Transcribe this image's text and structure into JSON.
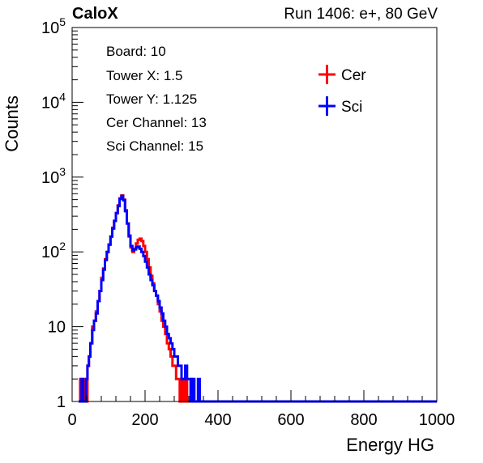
{
  "header": {
    "left_title": "CaloX",
    "right_title": "Run 1406: e+, 80 GeV"
  },
  "info_box": {
    "lines": [
      "Board: 10",
      "Tower X: 1.5",
      "Tower Y: 1.125",
      "Cer Channel: 13",
      "Sci Channel: 15"
    ]
  },
  "chart_data": {
    "type": "line",
    "xlabel": "Energy HG",
    "ylabel": "Counts",
    "xlim": [
      0,
      1000
    ],
    "ylim": [
      1,
      100000
    ],
    "yscale": "log",
    "xticks": [
      0,
      200,
      400,
      600,
      800,
      1000
    ],
    "yticks": [
      {
        "value": 1,
        "label": "1"
      },
      {
        "value": 10,
        "label": "10"
      },
      {
        "value": 100,
        "label": "10^2"
      },
      {
        "value": 1000,
        "label": "10^3"
      },
      {
        "value": 10000,
        "label": "10^4"
      },
      {
        "value": 100000,
        "label": "10^5"
      }
    ],
    "legend": {
      "position": "top-right",
      "entries": [
        {
          "name": "Cer",
          "color": "#ff0000"
        },
        {
          "name": "Sci",
          "color": "#0000ff"
        }
      ]
    },
    "series": [
      {
        "name": "Cer",
        "color": "#ff0000",
        "x": [
          18,
          22,
          26,
          30,
          34,
          38,
          42,
          46,
          50,
          55,
          60,
          65,
          70,
          75,
          80,
          85,
          90,
          95,
          100,
          105,
          110,
          115,
          120,
          125,
          130,
          135,
          140,
          145,
          150,
          155,
          160,
          165,
          170,
          175,
          180,
          185,
          190,
          195,
          200,
          205,
          210,
          215,
          220,
          225,
          230,
          235,
          240,
          245,
          250,
          255,
          260,
          265,
          270,
          275,
          280,
          285,
          290,
          295,
          300,
          305,
          310,
          315,
          320,
          325,
          330,
          335,
          340,
          345,
          350,
          360,
          380
        ],
        "y": [
          1,
          2,
          1,
          2,
          1,
          1,
          3,
          4,
          6,
          10,
          12,
          16,
          22,
          30,
          45,
          60,
          80,
          100,
          125,
          160,
          210,
          260,
          330,
          420,
          520,
          570,
          500,
          360,
          240,
          160,
          115,
          100,
          110,
          130,
          145,
          150,
          140,
          120,
          100,
          80,
          62,
          48,
          38,
          30,
          26,
          20,
          16,
          12,
          10,
          8,
          6,
          5,
          4,
          3,
          3,
          2,
          2,
          1,
          2,
          1,
          2,
          1,
          1,
          2,
          1,
          1,
          1,
          1,
          1,
          1,
          1
        ]
      },
      {
        "name": "Sci",
        "color": "#0000ff",
        "x": [
          18,
          22,
          26,
          30,
          34,
          38,
          42,
          46,
          50,
          55,
          60,
          65,
          70,
          75,
          80,
          85,
          90,
          95,
          100,
          105,
          110,
          115,
          120,
          125,
          130,
          135,
          140,
          145,
          150,
          155,
          160,
          165,
          170,
          175,
          180,
          185,
          190,
          195,
          200,
          205,
          210,
          215,
          220,
          225,
          230,
          235,
          240,
          245,
          250,
          255,
          260,
          265,
          270,
          275,
          280,
          285,
          290,
          295,
          300,
          305,
          310,
          315,
          320,
          325,
          330,
          335,
          340,
          345,
          350,
          360,
          370,
          380,
          390,
          400,
          410,
          420,
          430,
          440,
          450,
          460,
          470,
          480,
          490,
          500,
          520,
          540,
          560,
          580,
          600,
          620,
          640,
          660,
          680,
          700,
          720,
          740,
          760,
          780,
          800,
          820,
          840,
          860,
          880,
          900,
          920,
          940,
          960,
          980,
          1000
        ],
        "y": [
          1,
          1,
          2,
          1,
          1,
          2,
          3,
          4,
          6,
          9,
          12,
          15,
          22,
          30,
          42,
          58,
          78,
          100,
          125,
          160,
          205,
          260,
          330,
          410,
          510,
          560,
          490,
          350,
          240,
          165,
          120,
          105,
          108,
          115,
          118,
          110,
          100,
          88,
          74,
          62,
          50,
          42,
          36,
          30,
          26,
          22,
          18,
          15,
          12,
          10,
          8,
          7,
          6,
          5,
          4,
          4,
          3,
          3,
          2,
          2,
          3,
          2,
          2,
          1,
          2,
          1,
          1,
          2,
          1,
          1,
          1,
          1,
          1,
          1,
          1,
          1,
          1,
          1,
          1,
          1,
          1,
          1,
          1,
          1,
          1,
          1,
          1,
          1,
          1,
          1,
          1,
          1,
          1,
          1,
          1,
          1,
          1,
          1,
          1,
          1,
          1,
          1,
          1,
          1,
          1,
          1,
          1,
          1,
          1
        ]
      }
    ]
  }
}
